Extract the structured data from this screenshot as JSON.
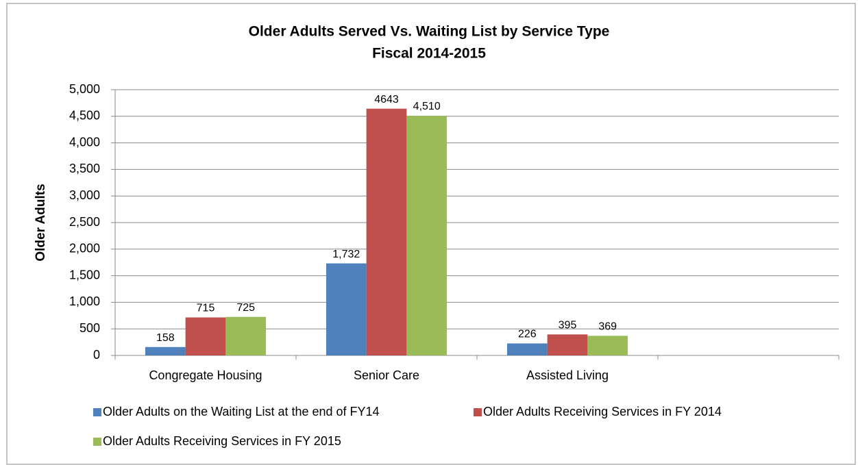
{
  "chart_data": {
    "type": "bar",
    "title": "Older Adults Served Vs. Waiting List by Service Type",
    "subtitle": "Fiscal 2014-2015",
    "y_label": "Older Adults",
    "categories": [
      "Congregate Housing",
      "Senior Care",
      "Assisted Living",
      null
    ],
    "series": [
      {
        "name": "Older Adults on the Waiting List at the end of FY14",
        "color": "#4f81bd",
        "values": [
          158,
          1732,
          226,
          null
        ],
        "value_labels": [
          "158",
          "1,732",
          "226",
          null
        ]
      },
      {
        "name": "Older Adults Receiving Services in FY 2014",
        "color": "#c0504d",
        "values": [
          715,
          4643,
          395,
          null
        ],
        "value_labels": [
          "715",
          "4643",
          "395",
          null
        ]
      },
      {
        "name": "Older Adults Receiving Services in FY 2015",
        "color": "#9bbb59",
        "values": [
          725,
          4510,
          369,
          null
        ],
        "value_labels": [
          "725",
          "4,510",
          "369",
          null
        ]
      }
    ],
    "ylim": [
      0,
      5000
    ],
    "yticks": [
      0,
      500,
      {
        "value": 1000,
        "label": "1,000"
      },
      {
        "value": 1500,
        "label": "1,500"
      },
      {
        "value": 2000,
        "label": "2,000"
      },
      {
        "value": 2500,
        "label": "2,500"
      },
      {
        "value": 3000,
        "label": "3,000"
      },
      {
        "value": 3500,
        "label": "3,500"
      },
      {
        "value": 4000,
        "label": "4,000"
      },
      {
        "value": 4500,
        "label": "4,500"
      },
      {
        "value": 5000,
        "label": "5,000"
      }
    ],
    "grid": true,
    "legend": "bottom"
  }
}
